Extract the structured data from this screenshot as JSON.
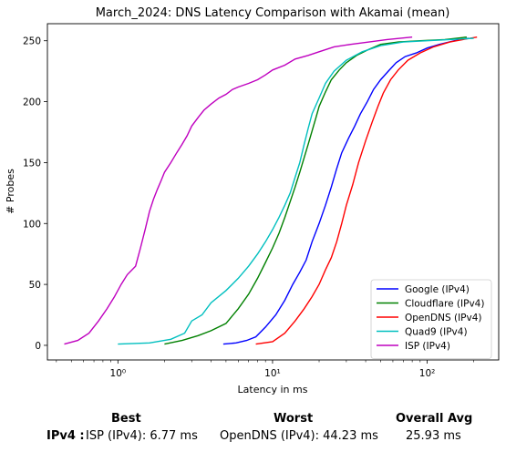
{
  "chart_data": {
    "type": "line",
    "title": "March_2024: DNS Latency Comparison with Akamai (mean)",
    "xlabel": "Latency in ms",
    "ylabel": "# Probes",
    "xscale": "log",
    "xlim": [
      0.35,
      290
    ],
    "ylim": [
      -12,
      264
    ],
    "xticks": [
      {
        "value": 1,
        "label": "10⁰"
      },
      {
        "value": 10,
        "label": "10¹"
      },
      {
        "value": 100,
        "label": "10²"
      }
    ],
    "yticks": [
      0,
      50,
      100,
      150,
      200,
      250
    ],
    "grid": false,
    "legend_position": "lower right",
    "series": [
      {
        "name": "Google (IPv4)",
        "color": "#0000ff",
        "x": [
          4.8,
          5.8,
          6.8,
          7.8,
          9.0,
          10.5,
          12.0,
          13.5,
          15.0,
          16.5,
          18.0,
          20.0,
          22.0,
          24.0,
          26.0,
          28.0,
          31.0,
          34.0,
          37.0,
          41.0,
          45.0,
          50.0,
          56.0,
          63.0,
          72.0,
          85.0,
          100.0,
          120.0,
          150.0,
          185.0
        ],
        "y": [
          1,
          2,
          4,
          7,
          15,
          25,
          37,
          50,
          60,
          70,
          85,
          100,
          115,
          130,
          145,
          158,
          170,
          180,
          190,
          200,
          210,
          218,
          225,
          232,
          237,
          240,
          244,
          247,
          250,
          252
        ]
      },
      {
        "name": "Cloudflare (IPv4)",
        "color": "#008000",
        "x": [
          2.0,
          2.6,
          3.3,
          4.0,
          5.0,
          6.0,
          7.0,
          8.0,
          9.0,
          10.0,
          11.0,
          12.0,
          13.0,
          14.0,
          15.0,
          16.0,
          17.0,
          18.0,
          19.0,
          20.0,
          22.0,
          24.0,
          27.0,
          30.0,
          35.0,
          42.0,
          50.0,
          65.0,
          90.0,
          130.0,
          180.0
        ],
        "y": [
          1,
          4,
          8,
          12,
          18,
          30,
          42,
          55,
          68,
          80,
          92,
          105,
          118,
          130,
          142,
          154,
          165,
          176,
          186,
          196,
          208,
          218,
          226,
          232,
          238,
          243,
          247,
          249,
          250,
          251,
          253
        ]
      },
      {
        "name": "OpenDNS (IPv4)",
        "color": "#ff0000",
        "x": [
          7.8,
          10.0,
          12.0,
          14.0,
          16.0,
          18.0,
          20.0,
          22.0,
          24.0,
          26.0,
          28.0,
          30.0,
          33.0,
          36.0,
          40.0,
          44.0,
          48.0,
          52.0,
          58.0,
          65.0,
          75.0,
          90.0,
          110.0,
          140.0,
          170.0,
          210.0
        ],
        "y": [
          1,
          3,
          10,
          20,
          30,
          40,
          50,
          62,
          72,
          85,
          100,
          115,
          132,
          150,
          168,
          183,
          196,
          207,
          218,
          226,
          234,
          240,
          245,
          249,
          251,
          253
        ]
      },
      {
        "name": "Quad9 (IPv4)",
        "color": "#00bfbf",
        "x": [
          1.0,
          1.6,
          2.2,
          2.7,
          3.0,
          3.5,
          4.0,
          5.0,
          6.0,
          7.0,
          8.0,
          9.0,
          10.0,
          11.0,
          12.0,
          13.0,
          14.0,
          15.0,
          16.0,
          17.0,
          18.0,
          20.0,
          22.0,
          25.0,
          30.0,
          38.0,
          50.0,
          70.0,
          100.0,
          140.0,
          200.0
        ],
        "y": [
          1,
          2,
          5,
          10,
          20,
          25,
          35,
          45,
          55,
          65,
          75,
          85,
          95,
          105,
          115,
          125,
          138,
          150,
          165,
          178,
          190,
          203,
          215,
          225,
          234,
          241,
          246,
          249,
          250,
          251,
          252
        ]
      },
      {
        "name": "ISP (IPv4)",
        "color": "#bf00bf",
        "x": [
          0.45,
          0.55,
          0.65,
          0.75,
          0.85,
          0.95,
          1.05,
          1.15,
          1.3,
          1.4,
          1.5,
          1.6,
          1.7,
          1.8,
          1.9,
          2.0,
          2.2,
          2.4,
          2.6,
          2.8,
          3.0,
          3.3,
          3.6,
          4.0,
          4.5,
          5.0,
          5.5,
          6.0,
          7.0,
          8.0,
          9.0,
          10.0,
          12.0,
          14.0,
          17.0,
          20.0,
          25.0,
          32.0,
          42.0,
          55.0,
          80.0
        ],
        "y": [
          1,
          4,
          10,
          20,
          30,
          40,
          50,
          58,
          65,
          80,
          95,
          110,
          120,
          128,
          135,
          142,
          150,
          158,
          165,
          172,
          180,
          187,
          193,
          198,
          203,
          206,
          210,
          212,
          215,
          218,
          222,
          226,
          230,
          235,
          238,
          241,
          245,
          247,
          249,
          251,
          253
        ]
      }
    ]
  },
  "summary": {
    "best_header": "Best",
    "worst_header": "Worst",
    "avg_header": "Overall Avg",
    "rows": [
      {
        "label": "IPv4 :",
        "best": "ISP (IPv4): 6.77 ms",
        "worst": "OpenDNS (IPv4): 44.23 ms",
        "avg": "25.93 ms"
      }
    ]
  }
}
